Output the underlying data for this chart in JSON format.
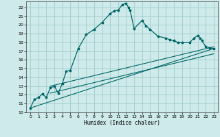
{
  "xlabel": "Humidex (Indice chaleur)",
  "bg_color": "#ceeaea",
  "grid_color": "#a0cccc",
  "line_color": "#006666",
  "xlim": [
    -0.5,
    23.5
  ],
  "ylim": [
    10,
    22.7
  ],
  "xticks": [
    0,
    1,
    2,
    3,
    4,
    5,
    6,
    7,
    8,
    9,
    10,
    11,
    12,
    13,
    14,
    15,
    16,
    17,
    18,
    19,
    20,
    21,
    22,
    23
  ],
  "yticks": [
    10,
    11,
    12,
    13,
    14,
    15,
    16,
    17,
    18,
    19,
    20,
    21,
    22
  ],
  "main_line": [
    [
      0,
      10.5
    ],
    [
      0.5,
      11.5
    ],
    [
      1,
      11.7
    ],
    [
      1.5,
      12.1
    ],
    [
      2,
      11.7
    ],
    [
      2.5,
      12.8
    ],
    [
      3,
      13.0
    ],
    [
      3.5,
      12.2
    ],
    [
      4,
      13.3
    ],
    [
      4.5,
      14.7
    ],
    [
      5,
      14.8
    ],
    [
      6,
      17.3
    ],
    [
      7,
      18.9
    ],
    [
      8,
      19.5
    ],
    [
      9,
      20.3
    ],
    [
      10,
      21.3
    ],
    [
      10.5,
      21.6
    ],
    [
      11,
      21.7
    ],
    [
      11.5,
      22.3
    ],
    [
      12,
      22.5
    ],
    [
      12.3,
      22.0
    ],
    [
      12.5,
      21.7
    ],
    [
      13,
      19.6
    ],
    [
      14,
      20.5
    ],
    [
      14.5,
      19.9
    ],
    [
      15,
      19.5
    ],
    [
      16,
      18.7
    ],
    [
      17,
      18.5
    ],
    [
      17.5,
      18.3
    ],
    [
      18,
      18.2
    ],
    [
      18.5,
      18.0
    ],
    [
      19,
      18.0
    ],
    [
      20,
      18.0
    ],
    [
      20.5,
      18.5
    ],
    [
      21,
      18.8
    ],
    [
      21.3,
      18.5
    ],
    [
      21.5,
      18.2
    ],
    [
      22,
      17.5
    ],
    [
      22.5,
      17.4
    ],
    [
      23,
      17.3
    ]
  ],
  "line1": [
    [
      0,
      10.5
    ],
    [
      23,
      17.3
    ]
  ],
  "line2": [
    [
      2.5,
      13.0
    ],
    [
      23,
      17.5
    ]
  ],
  "line3": [
    [
      2.5,
      12.2
    ],
    [
      23,
      16.7
    ]
  ]
}
